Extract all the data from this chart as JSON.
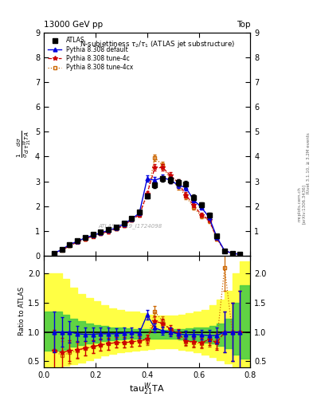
{
  "title_top": "13000 GeV pp",
  "title_right": "Top",
  "plot_title": "N-subjettiness $\\tau_2/\\tau_1$ (ATLAS jet substructure)",
  "watermark": "ATLAS_2019_I1724098",
  "ylabel_ratio": "Ratio to ATLAS",
  "ylim_main": [
    0,
    9
  ],
  "ylim_ratio": [
    0.4,
    2.3
  ],
  "yticks_main": [
    0,
    1,
    2,
    3,
    4,
    5,
    6,
    7,
    8,
    9
  ],
  "yticks_ratio": [
    0.5,
    1.0,
    1.5,
    2.0
  ],
  "xlim": [
    0,
    0.8
  ],
  "xticks": [
    0.0,
    0.2,
    0.4,
    0.6,
    0.8
  ],
  "x": [
    0.04,
    0.07,
    0.1,
    0.13,
    0.16,
    0.19,
    0.22,
    0.25,
    0.28,
    0.31,
    0.34,
    0.37,
    0.4,
    0.43,
    0.46,
    0.49,
    0.52,
    0.55,
    0.58,
    0.61,
    0.64,
    0.67,
    0.7,
    0.73,
    0.76
  ],
  "atlas_y": [
    0.1,
    0.25,
    0.45,
    0.6,
    0.75,
    0.85,
    0.95,
    1.05,
    1.15,
    1.3,
    1.5,
    1.75,
    2.4,
    2.85,
    3.1,
    3.05,
    2.95,
    2.9,
    2.35,
    2.05,
    1.65,
    0.8,
    0.2,
    0.1,
    0.05
  ],
  "atlas_yerr": [
    0.03,
    0.05,
    0.06,
    0.06,
    0.06,
    0.07,
    0.07,
    0.07,
    0.07,
    0.08,
    0.08,
    0.09,
    0.1,
    0.11,
    0.12,
    0.12,
    0.12,
    0.12,
    0.11,
    0.1,
    0.09,
    0.07,
    0.05,
    0.04,
    0.03
  ],
  "py_default_y": [
    0.1,
    0.25,
    0.45,
    0.58,
    0.72,
    0.82,
    0.92,
    1.02,
    1.12,
    1.28,
    1.48,
    1.72,
    3.1,
    3.05,
    3.15,
    3.05,
    2.85,
    2.75,
    2.25,
    1.95,
    1.55,
    0.75,
    0.2,
    0.1,
    0.05
  ],
  "py_default_yerr": [
    0.02,
    0.04,
    0.05,
    0.05,
    0.06,
    0.06,
    0.06,
    0.07,
    0.07,
    0.08,
    0.08,
    0.09,
    0.13,
    0.13,
    0.13,
    0.13,
    0.12,
    0.12,
    0.11,
    0.1,
    0.09,
    0.07,
    0.05,
    0.04,
    0.03
  ],
  "py_4c_y": [
    0.1,
    0.22,
    0.4,
    0.55,
    0.68,
    0.78,
    0.88,
    0.98,
    1.08,
    1.22,
    1.45,
    1.65,
    2.5,
    3.55,
    3.55,
    3.25,
    2.95,
    2.45,
    2.05,
    1.65,
    1.45,
    0.7,
    0.2,
    0.1,
    0.05
  ],
  "py_4c_yerr": [
    0.02,
    0.04,
    0.05,
    0.05,
    0.06,
    0.06,
    0.06,
    0.07,
    0.07,
    0.08,
    0.08,
    0.09,
    0.1,
    0.13,
    0.13,
    0.13,
    0.12,
    0.11,
    0.1,
    0.09,
    0.08,
    0.07,
    0.05,
    0.04,
    0.03
  ],
  "py_4cx_y": [
    0.1,
    0.22,
    0.4,
    0.55,
    0.68,
    0.78,
    0.88,
    0.98,
    1.08,
    1.22,
    1.45,
    1.65,
    2.45,
    3.95,
    3.65,
    3.05,
    2.8,
    2.4,
    1.95,
    1.6,
    1.4,
    0.68,
    0.2,
    0.1,
    0.05
  ],
  "py_4cx_yerr": [
    0.02,
    0.04,
    0.05,
    0.05,
    0.06,
    0.06,
    0.06,
    0.07,
    0.07,
    0.08,
    0.08,
    0.09,
    0.1,
    0.14,
    0.14,
    0.13,
    0.12,
    0.11,
    0.1,
    0.09,
    0.08,
    0.07,
    0.05,
    0.04,
    0.03
  ],
  "ratio_default_y": [
    1.0,
    1.0,
    1.0,
    0.97,
    0.96,
    0.96,
    0.97,
    0.97,
    0.97,
    0.98,
    0.99,
    0.98,
    1.29,
    1.07,
    1.02,
    1.0,
    0.97,
    0.95,
    0.96,
    0.95,
    0.94,
    0.94,
    1.0,
    1.0,
    1.0
  ],
  "ratio_default_yerr": [
    0.35,
    0.25,
    0.18,
    0.14,
    0.12,
    0.11,
    0.1,
    0.1,
    0.09,
    0.09,
    0.08,
    0.08,
    0.08,
    0.07,
    0.07,
    0.07,
    0.07,
    0.07,
    0.08,
    0.08,
    0.09,
    0.13,
    0.35,
    0.5,
    0.7
  ],
  "ratio_4c_y": [
    0.68,
    0.65,
    0.68,
    0.7,
    0.72,
    0.75,
    0.78,
    0.8,
    0.82,
    0.82,
    0.83,
    0.85,
    0.88,
    1.18,
    1.15,
    1.05,
    0.98,
    0.85,
    0.83,
    0.82,
    0.87,
    0.82,
    1.0,
    1.0,
    1.0
  ],
  "ratio_4c_yerr": [
    0.35,
    0.25,
    0.18,
    0.14,
    0.12,
    0.11,
    0.1,
    0.1,
    0.09,
    0.09,
    0.08,
    0.08,
    0.08,
    0.08,
    0.07,
    0.07,
    0.07,
    0.07,
    0.08,
    0.08,
    0.09,
    0.13,
    0.35,
    0.5,
    0.7
  ],
  "ratio_4cx_y": [
    0.68,
    0.6,
    0.65,
    0.68,
    0.72,
    0.75,
    0.78,
    0.8,
    0.82,
    0.82,
    0.83,
    0.85,
    0.86,
    1.35,
    1.18,
    1.01,
    0.96,
    0.83,
    0.82,
    0.8,
    0.84,
    0.85,
    2.1,
    1.0,
    1.0
  ],
  "ratio_4cx_yerr": [
    0.35,
    0.25,
    0.18,
    0.14,
    0.12,
    0.11,
    0.1,
    0.1,
    0.09,
    0.09,
    0.08,
    0.08,
    0.08,
    0.09,
    0.08,
    0.07,
    0.07,
    0.07,
    0.08,
    0.08,
    0.09,
    0.13,
    0.4,
    0.5,
    0.7
  ],
  "yellow_x": [
    0.0,
    0.04,
    0.07,
    0.1,
    0.13,
    0.16,
    0.19,
    0.22,
    0.25,
    0.28,
    0.31,
    0.34,
    0.37,
    0.4,
    0.43,
    0.46,
    0.49,
    0.52,
    0.55,
    0.58,
    0.61,
    0.64,
    0.67,
    0.7,
    0.73,
    0.76,
    0.8
  ],
  "yellow_upper": [
    2.0,
    2.0,
    1.9,
    1.75,
    1.65,
    1.58,
    1.52,
    1.45,
    1.4,
    1.38,
    1.35,
    1.35,
    1.32,
    1.3,
    1.28,
    1.28,
    1.28,
    1.3,
    1.32,
    1.35,
    1.38,
    1.45,
    1.55,
    1.7,
    2.0,
    2.2,
    2.2
  ],
  "yellow_lower": [
    0.4,
    0.4,
    0.42,
    0.45,
    0.48,
    0.52,
    0.56,
    0.6,
    0.63,
    0.65,
    0.67,
    0.68,
    0.7,
    0.71,
    0.72,
    0.72,
    0.72,
    0.7,
    0.68,
    0.66,
    0.62,
    0.58,
    0.52,
    0.46,
    0.4,
    0.4,
    0.4
  ],
  "green_upper": [
    1.35,
    1.35,
    1.3,
    1.22,
    1.18,
    1.15,
    1.12,
    1.1,
    1.08,
    1.07,
    1.06,
    1.05,
    1.05,
    1.05,
    1.04,
    1.04,
    1.05,
    1.05,
    1.06,
    1.07,
    1.08,
    1.1,
    1.15,
    1.22,
    1.5,
    1.8,
    1.8
  ],
  "green_lower": [
    0.68,
    0.68,
    0.7,
    0.75,
    0.78,
    0.8,
    0.82,
    0.84,
    0.86,
    0.87,
    0.88,
    0.88,
    0.88,
    0.88,
    0.88,
    0.88,
    0.88,
    0.87,
    0.86,
    0.84,
    0.82,
    0.8,
    0.76,
    0.72,
    0.62,
    0.55,
    0.55
  ],
  "color_atlas": "#000000",
  "color_default": "#0000dd",
  "color_4c": "#cc0000",
  "color_4cx": "#cc6600",
  "color_yellow": "#ffff44",
  "color_green": "#44cc44",
  "rivet_text": "Rivet 3.1.10, ≥ 3.2M events",
  "arxiv_text": "[arXiv:1306.3436]",
  "mcplots_text": "mcplots.cern.ch"
}
